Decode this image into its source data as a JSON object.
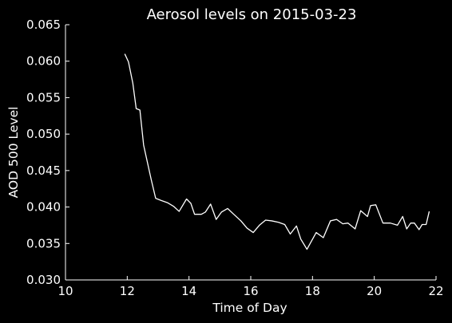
{
  "chart_data": {
    "type": "line",
    "title": "Aerosol levels on 2015-03-23",
    "xlabel": "Time of Day",
    "ylabel": "AOD 500 Level",
    "xlim": [
      10,
      22
    ],
    "ylim": [
      0.03,
      0.065
    ],
    "xticks": [
      "10",
      "12",
      "14",
      "16",
      "18",
      "20",
      "22"
    ],
    "yticks": [
      "0.030",
      "0.035",
      "0.040",
      "0.045",
      "0.050",
      "0.055",
      "0.060",
      "0.065"
    ],
    "grid": false,
    "background": "#000000",
    "line_color": "#ffffff",
    "series": [
      {
        "x": [
          11.92,
          12.04,
          12.18,
          12.29,
          12.41,
          12.53,
          12.66,
          12.78,
          12.92,
          13.1,
          13.3,
          13.5,
          13.68,
          13.92,
          14.06,
          14.18,
          14.4,
          14.53,
          14.7,
          14.88,
          15.05,
          15.25,
          15.45,
          15.68,
          15.88,
          16.08,
          16.28,
          16.48,
          16.68,
          16.9,
          17.1,
          17.28,
          17.48,
          17.62,
          17.82,
          17.95,
          18.12,
          18.35,
          18.58,
          18.78,
          18.98,
          19.15,
          19.38,
          19.56,
          19.78,
          19.88,
          20.05,
          20.28,
          20.52,
          20.75,
          20.92,
          21.05,
          21.18,
          21.3,
          21.45,
          21.55,
          21.68,
          21.78
        ],
        "y": [
          0.061,
          0.0599,
          0.057,
          0.0535,
          0.0533,
          0.0485,
          0.046,
          0.0437,
          0.0412,
          0.0409,
          0.0406,
          0.0401,
          0.0394,
          0.0411,
          0.0405,
          0.039,
          0.039,
          0.0393,
          0.0404,
          0.0383,
          0.0393,
          0.0398,
          0.039,
          0.0381,
          0.0371,
          0.0365,
          0.0375,
          0.0382,
          0.0381,
          0.0379,
          0.0376,
          0.0363,
          0.0374,
          0.0356,
          0.0342,
          0.0352,
          0.0365,
          0.0358,
          0.0381,
          0.0383,
          0.0377,
          0.0378,
          0.037,
          0.0395,
          0.0387,
          0.0402,
          0.0403,
          0.0378,
          0.0378,
          0.0375,
          0.0387,
          0.037,
          0.0378,
          0.0378,
          0.0369,
          0.0376,
          0.0376,
          0.0394
        ]
      }
    ]
  }
}
